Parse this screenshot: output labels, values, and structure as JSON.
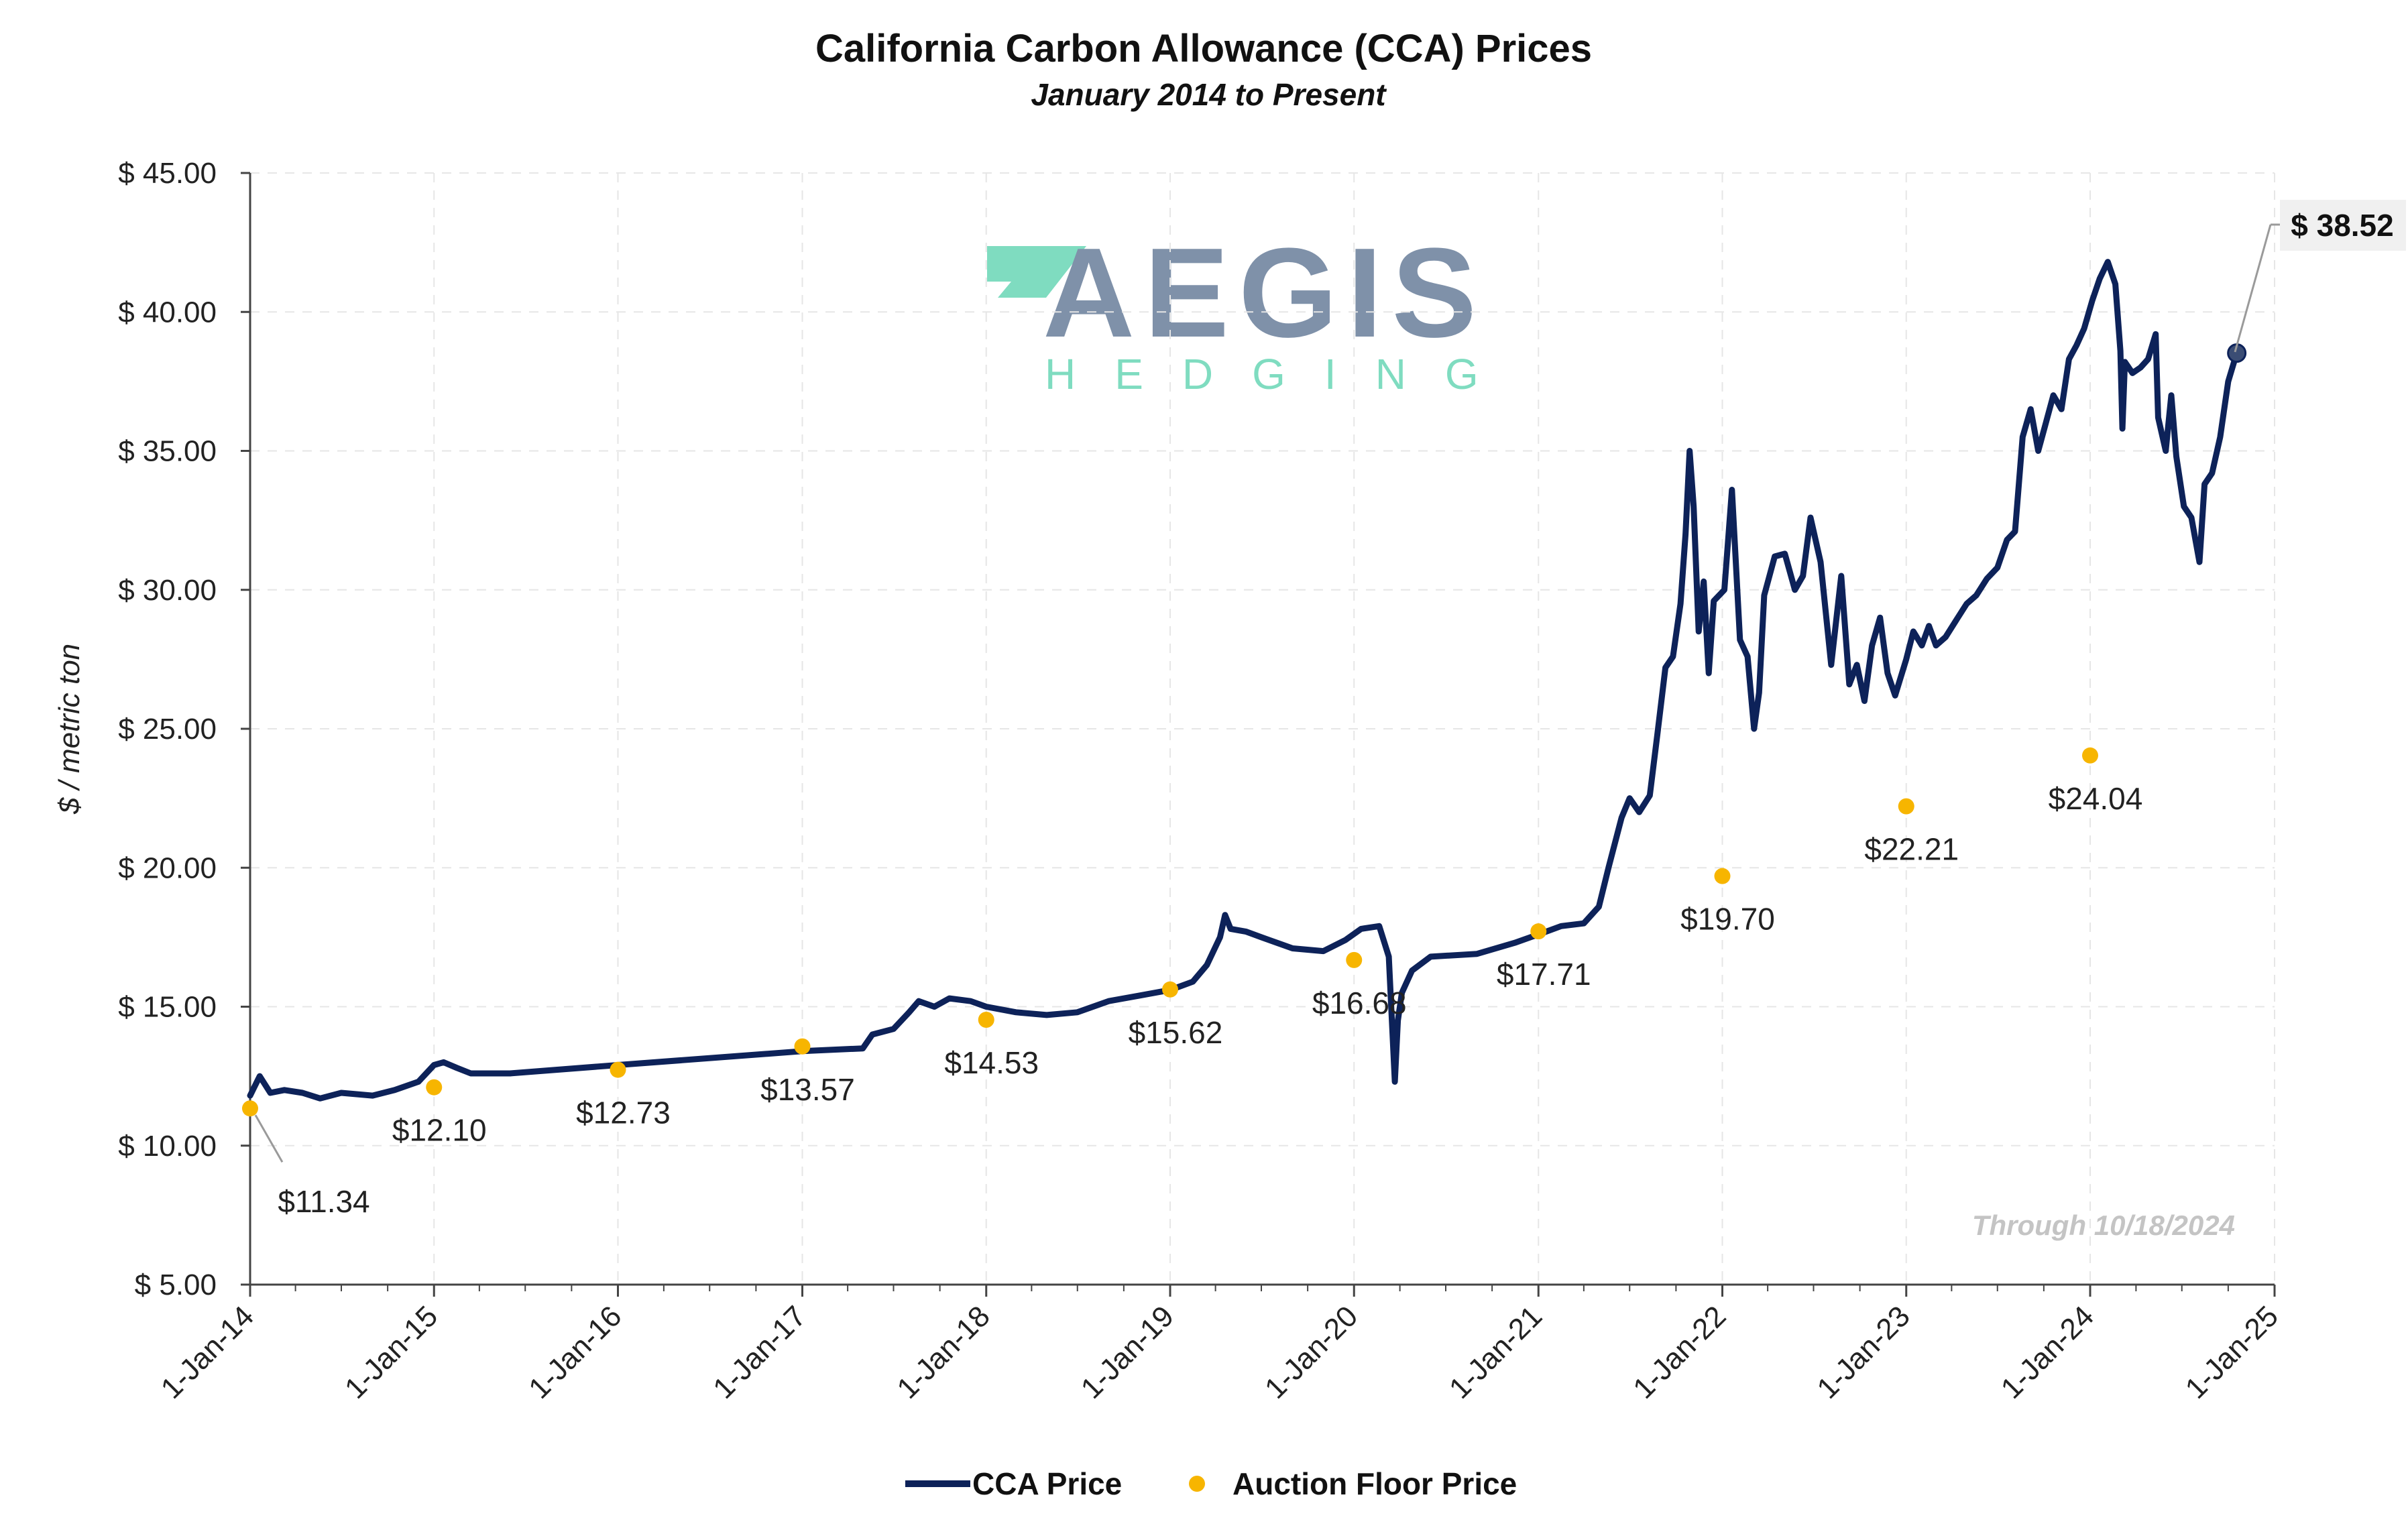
{
  "chart_data": {
    "type": "line",
    "title": "California Carbon Allowance (CCA) Prices",
    "subtitle": "January 2014 to Present",
    "ylabel": "$ / metric ton",
    "xlabel": "",
    "ylim": [
      5,
      45
    ],
    "xlim": [
      "2014-01-01",
      "2025-01-01"
    ],
    "y_ticks": [
      "$ 5.00",
      "$ 10.00",
      "$ 15.00",
      "$ 20.00",
      "$ 25.00",
      "$ 30.00",
      "$ 35.00",
      "$ 40.00",
      "$ 45.00"
    ],
    "y_tick_values": [
      5,
      10,
      15,
      20,
      25,
      30,
      35,
      40,
      45
    ],
    "x_ticks": [
      "1-Jan-14",
      "1-Jan-15",
      "1-Jan-16",
      "1-Jan-17",
      "1-Jan-18",
      "1-Jan-19",
      "1-Jan-20",
      "1-Jan-21",
      "1-Jan-22",
      "1-Jan-23",
      "1-Jan-24",
      "1-Jan-25"
    ],
    "x_tick_dates": [
      "2014-01-01",
      "2015-01-01",
      "2016-01-01",
      "2017-01-01",
      "2018-01-01",
      "2019-01-01",
      "2020-01-01",
      "2021-01-01",
      "2022-01-01",
      "2023-01-01",
      "2024-01-01",
      "2025-01-01"
    ],
    "grid": true,
    "legend_position": "bottom-center",
    "series": [
      {
        "name": "CCA Price",
        "kind": "line",
        "color": "#0d2259",
        "points": [
          [
            "2014-01-01",
            11.8
          ],
          [
            "2014-01-20",
            12.5
          ],
          [
            "2014-02-10",
            11.9
          ],
          [
            "2014-03-10",
            12.0
          ],
          [
            "2014-04-15",
            11.9
          ],
          [
            "2014-05-20",
            11.7
          ],
          [
            "2014-07-01",
            11.9
          ],
          [
            "2014-09-01",
            11.8
          ],
          [
            "2014-10-15",
            12.0
          ],
          [
            "2014-12-01",
            12.3
          ],
          [
            "2015-01-01",
            12.9
          ],
          [
            "2015-01-20",
            13.0
          ],
          [
            "2015-02-15",
            12.8
          ],
          [
            "2015-03-15",
            12.6
          ],
          [
            "2015-04-15",
            12.6
          ],
          [
            "2015-06-01",
            12.6
          ],
          [
            "2016-01-01",
            12.9
          ],
          [
            "2017-01-01",
            13.4
          ],
          [
            "2017-05-01",
            13.5
          ],
          [
            "2017-05-20",
            14.0
          ],
          [
            "2017-07-01",
            14.2
          ],
          [
            "2017-08-01",
            14.8
          ],
          [
            "2017-08-20",
            15.2
          ],
          [
            "2017-09-20",
            15.0
          ],
          [
            "2017-10-20",
            15.3
          ],
          [
            "2017-12-01",
            15.2
          ],
          [
            "2018-01-01",
            15.0
          ],
          [
            "2018-03-01",
            14.8
          ],
          [
            "2018-05-01",
            14.7
          ],
          [
            "2018-07-01",
            14.8
          ],
          [
            "2018-09-01",
            15.2
          ],
          [
            "2018-11-01",
            15.4
          ],
          [
            "2019-01-01",
            15.6
          ],
          [
            "2019-02-15",
            15.9
          ],
          [
            "2019-03-15",
            16.5
          ],
          [
            "2019-04-10",
            17.5
          ],
          [
            "2019-04-20",
            18.3
          ],
          [
            "2019-05-01",
            17.8
          ],
          [
            "2019-06-01",
            17.7
          ],
          [
            "2019-07-01",
            17.5
          ],
          [
            "2019-09-01",
            17.1
          ],
          [
            "2019-11-01",
            17.0
          ],
          [
            "2019-12-15",
            17.4
          ],
          [
            "2020-01-15",
            17.8
          ],
          [
            "2020-02-20",
            17.9
          ],
          [
            "2020-03-10",
            16.8
          ],
          [
            "2020-03-22",
            12.3
          ],
          [
            "2020-03-28",
            14.5
          ],
          [
            "2020-04-05",
            15.5
          ],
          [
            "2020-04-25",
            16.3
          ],
          [
            "2020-06-01",
            16.8
          ],
          [
            "2020-09-01",
            16.9
          ],
          [
            "2020-11-15",
            17.3
          ],
          [
            "2021-01-01",
            17.6
          ],
          [
            "2021-02-15",
            17.9
          ],
          [
            "2021-04-01",
            18.0
          ],
          [
            "2021-05-01",
            18.6
          ],
          [
            "2021-05-20",
            20.0
          ],
          [
            "2021-06-15",
            21.8
          ],
          [
            "2021-07-01",
            22.5
          ],
          [
            "2021-07-20",
            22.0
          ],
          [
            "2021-08-10",
            22.6
          ],
          [
            "2021-08-25",
            24.8
          ],
          [
            "2021-09-10",
            27.2
          ],
          [
            "2021-09-25",
            27.6
          ],
          [
            "2021-10-10",
            29.5
          ],
          [
            "2021-10-20",
            32.0
          ],
          [
            "2021-10-28",
            35.0
          ],
          [
            "2021-11-05",
            33.0
          ],
          [
            "2021-11-15",
            28.5
          ],
          [
            "2021-11-25",
            30.3
          ],
          [
            "2021-12-05",
            27.0
          ],
          [
            "2021-12-15",
            29.6
          ],
          [
            "2022-01-05",
            30.0
          ],
          [
            "2022-01-20",
            33.6
          ],
          [
            "2022-02-05",
            28.2
          ],
          [
            "2022-02-20",
            27.6
          ],
          [
            "2022-03-05",
            25.0
          ],
          [
            "2022-03-15",
            26.3
          ],
          [
            "2022-03-25",
            29.8
          ],
          [
            "2022-04-15",
            31.2
          ],
          [
            "2022-05-05",
            31.3
          ],
          [
            "2022-05-25",
            30.0
          ],
          [
            "2022-06-10",
            30.5
          ],
          [
            "2022-06-25",
            32.6
          ],
          [
            "2022-07-15",
            31.0
          ],
          [
            "2022-08-05",
            27.3
          ],
          [
            "2022-08-25",
            30.5
          ],
          [
            "2022-09-10",
            26.6
          ],
          [
            "2022-09-25",
            27.3
          ],
          [
            "2022-10-10",
            26.0
          ],
          [
            "2022-10-25",
            28.0
          ],
          [
            "2022-11-10",
            29.0
          ],
          [
            "2022-11-25",
            27.0
          ],
          [
            "2022-12-10",
            26.2
          ],
          [
            "2023-01-01",
            27.5
          ],
          [
            "2023-01-15",
            28.5
          ],
          [
            "2023-02-01",
            28.0
          ],
          [
            "2023-02-15",
            28.7
          ],
          [
            "2023-03-01",
            28.0
          ],
          [
            "2023-03-20",
            28.3
          ],
          [
            "2023-04-10",
            28.9
          ],
          [
            "2023-05-01",
            29.5
          ],
          [
            "2023-05-20",
            29.8
          ],
          [
            "2023-06-10",
            30.4
          ],
          [
            "2023-07-01",
            30.8
          ],
          [
            "2023-07-20",
            31.8
          ],
          [
            "2023-08-05",
            32.1
          ],
          [
            "2023-08-20",
            35.5
          ],
          [
            "2023-09-05",
            36.5
          ],
          [
            "2023-09-20",
            35.0
          ],
          [
            "2023-10-05",
            36.0
          ],
          [
            "2023-10-20",
            37.0
          ],
          [
            "2023-11-05",
            36.5
          ],
          [
            "2023-11-20",
            38.3
          ],
          [
            "2023-12-05",
            38.8
          ],
          [
            "2023-12-20",
            39.4
          ],
          [
            "2024-01-05",
            40.4
          ],
          [
            "2024-01-20",
            41.2
          ],
          [
            "2024-02-05",
            41.8
          ],
          [
            "2024-02-20",
            41.0
          ],
          [
            "2024-03-01",
            38.6
          ],
          [
            "2024-03-05",
            35.8
          ],
          [
            "2024-03-10",
            38.2
          ],
          [
            "2024-03-25",
            37.8
          ],
          [
            "2024-04-10",
            38.0
          ],
          [
            "2024-04-25",
            38.3
          ],
          [
            "2024-05-10",
            39.2
          ],
          [
            "2024-05-15",
            36.2
          ],
          [
            "2024-05-30",
            35.0
          ],
          [
            "2024-06-10",
            37.0
          ],
          [
            "2024-06-20",
            34.8
          ],
          [
            "2024-07-05",
            33.0
          ],
          [
            "2024-07-20",
            32.6
          ],
          [
            "2024-08-05",
            31.0
          ],
          [
            "2024-08-15",
            33.8
          ],
          [
            "2024-08-30",
            34.2
          ],
          [
            "2024-09-15",
            35.5
          ],
          [
            "2024-10-01",
            37.5
          ],
          [
            "2024-10-18",
            38.52
          ]
        ]
      },
      {
        "name": "Auction Floor Price",
        "kind": "points",
        "color": "#f7b500",
        "points": [
          [
            "2014-01-01",
            11.34,
            "$11.34"
          ],
          [
            "2015-01-01",
            12.1,
            "$12.10"
          ],
          [
            "2016-01-01",
            12.73,
            "$12.73"
          ],
          [
            "2017-01-01",
            13.57,
            "$13.57"
          ],
          [
            "2018-01-01",
            14.53,
            "$14.53"
          ],
          [
            "2019-01-01",
            15.62,
            "$15.62"
          ],
          [
            "2020-01-01",
            16.68,
            "$16.68"
          ],
          [
            "2021-01-01",
            17.71,
            "$17.71"
          ],
          [
            "2022-01-01",
            19.7,
            "$19.70"
          ],
          [
            "2023-01-01",
            22.21,
            "$22.21"
          ],
          [
            "2024-01-01",
            24.04,
            "$24.04"
          ]
        ]
      }
    ],
    "last_value_label": "$ 38.52",
    "annotation": "Through 10/18/2024",
    "logo": {
      "main": "AEGIS",
      "sub": "HEDGING",
      "main_color": "#7f91a9",
      "accent_color": "#7fdcc0"
    },
    "legend": [
      {
        "label": "CCA Price",
        "marker": "line",
        "color": "#0d2259"
      },
      {
        "label": "Auction Floor Price",
        "marker": "dot",
        "color": "#f7b500"
      }
    ]
  }
}
